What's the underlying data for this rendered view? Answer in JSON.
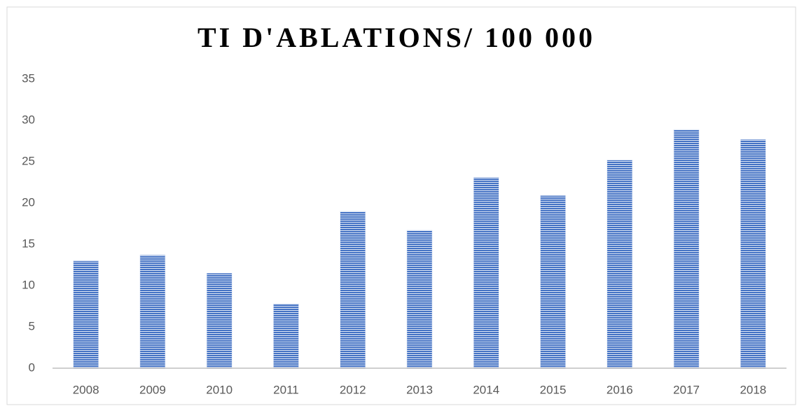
{
  "chart_data": {
    "type": "bar",
    "title": "TI D'ABLATIONS/ 100 000",
    "categories": [
      "2008",
      "2009",
      "2010",
      "2011",
      "2012",
      "2013",
      "2014",
      "2015",
      "2016",
      "2017",
      "2018"
    ],
    "values": [
      13.0,
      13.7,
      11.5,
      7.8,
      19.0,
      16.7,
      23.1,
      20.9,
      25.2,
      28.9,
      27.7
    ],
    "color": "#4472c4",
    "ylim": [
      0,
      35
    ],
    "yticks": [
      0,
      5,
      10,
      15,
      20,
      25,
      30,
      35
    ],
    "grid": false
  }
}
